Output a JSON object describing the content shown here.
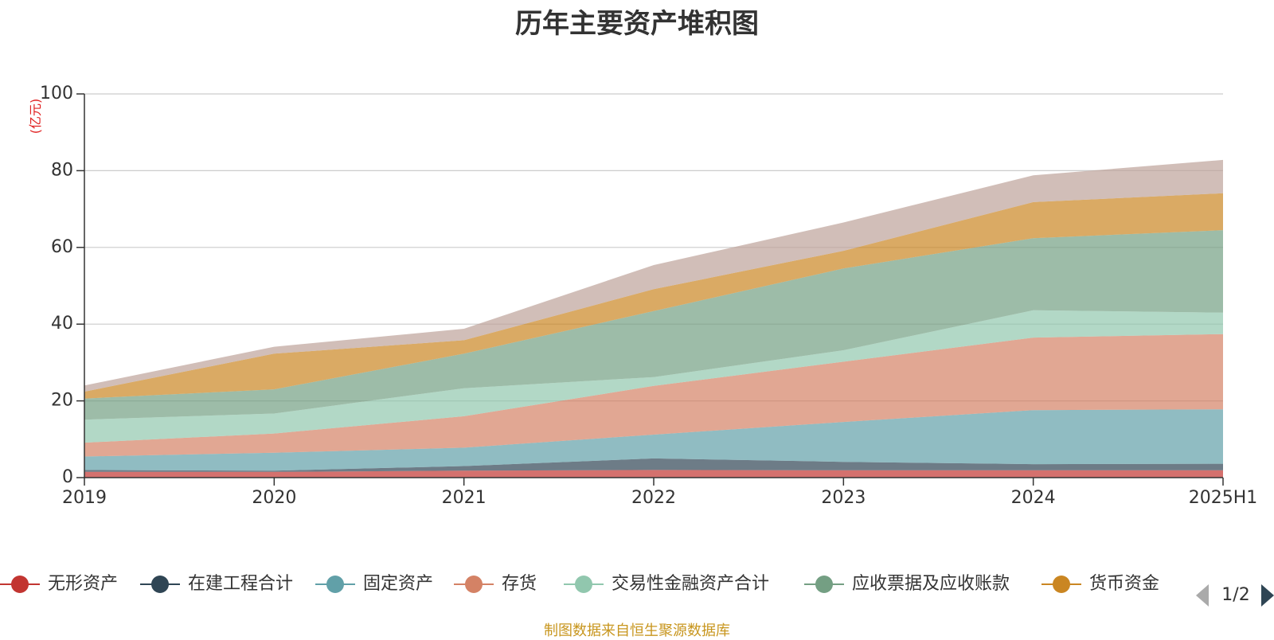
{
  "chart_data": {
    "type": "area",
    "stacked": true,
    "title": "历年主要资产堆积图",
    "unit_label": "(亿元)",
    "categories": [
      "2019",
      "2020",
      "2021",
      "2022",
      "2023",
      "2024",
      "2025H1"
    ],
    "ylim": [
      0,
      100
    ],
    "yticks": [
      0,
      20,
      40,
      60,
      80,
      100
    ],
    "grid": true,
    "legend_position": "bottom",
    "series": [
      {
        "name": "无形资产",
        "color": "#c23531",
        "values": [
          1.5,
          1.5,
          1.8,
          2.0,
          1.9,
          1.9,
          1.9
        ]
      },
      {
        "name": "在建工程合计",
        "color": "#2f4554",
        "values": [
          0.5,
          0.3,
          1.2,
          3.0,
          2.2,
          1.6,
          1.7
        ]
      },
      {
        "name": "固定资产",
        "color": "#61a0a8",
        "values": [
          3.5,
          4.7,
          4.8,
          6.2,
          10.4,
          14.1,
          14.2
        ]
      },
      {
        "name": "存货",
        "color": "#d48265",
        "values": [
          3.6,
          5.0,
          8.2,
          12.7,
          15.7,
          18.9,
          19.6
        ]
      },
      {
        "name": "交易性金融资产合计",
        "color": "#91c7ae",
        "values": [
          6.0,
          5.2,
          7.3,
          2.3,
          3.0,
          7.1,
          5.6
        ]
      },
      {
        "name": "应收票据及应收账款",
        "color": "#749f83",
        "values": [
          5.5,
          6.3,
          9.0,
          17.2,
          21.3,
          18.8,
          21.5
        ]
      },
      {
        "name": "货币资金",
        "color": "#ca8622",
        "values": [
          1.8,
          9.3,
          3.5,
          5.7,
          4.6,
          9.4,
          9.6
        ]
      },
      {
        "name": "",
        "color": "#bda29a",
        "values": [
          1.6,
          1.8,
          3.0,
          6.3,
          7.4,
          7.0,
          8.7
        ]
      }
    ]
  },
  "legend": {
    "pager_text": "1/2"
  },
  "footer": {
    "source": "制图数据来自恒生聚源数据库"
  }
}
